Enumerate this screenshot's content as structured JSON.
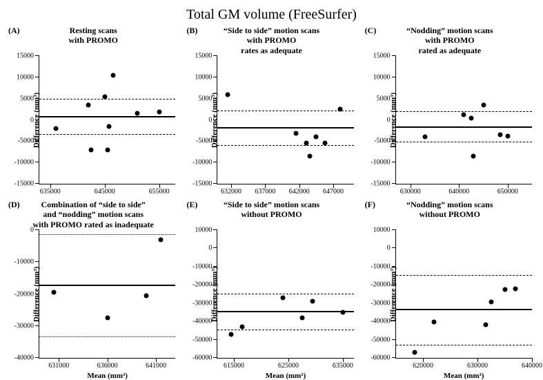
{
  "title": "Total GM volume (FreeSurfer)",
  "ylabel": "Difference (mm³)",
  "xlabel": "Mean (mm³)",
  "colors": {
    "bg": "#ffffff",
    "fg": "#000000"
  },
  "typography": {
    "title_fontsize": 20,
    "panel_title_fontsize": 12,
    "tick_fontsize": 10,
    "label_fontsize": 11
  },
  "panels": [
    {
      "label": "(A)",
      "title_lines": [
        "Resting scans",
        "with PROMO"
      ],
      "type": "scatter",
      "xlim": [
        633000,
        658000
      ],
      "ylim": [
        -15000,
        15000
      ],
      "xticks": [
        635000,
        645000,
        655000
      ],
      "yticks": [
        -15000,
        -10000,
        -5000,
        0,
        5000,
        10000,
        15000
      ],
      "mean_line": 600,
      "limits": [
        -3500,
        4800
      ],
      "limits_style": "dashed",
      "points": [
        [
          636000,
          -2000
        ],
        [
          642000,
          3500
        ],
        [
          642500,
          -7000
        ],
        [
          645000,
          5500
        ],
        [
          645500,
          -7000
        ],
        [
          645800,
          -1500
        ],
        [
          646500,
          10500
        ],
        [
          651000,
          1500
        ],
        [
          655000,
          1800
        ]
      ]
    },
    {
      "label": "(B)",
      "title_lines": [
        "“Side to side” motion scans",
        "with PROMO",
        "rates as adequate"
      ],
      "type": "scatter",
      "xlim": [
        630000,
        650000
      ],
      "ylim": [
        -15000,
        15000
      ],
      "xticks": [
        632000,
        637000,
        642000,
        647000
      ],
      "yticks": [
        -15000,
        -10000,
        -5000,
        0,
        5000,
        10000,
        15000
      ],
      "mean_line": -2000,
      "limits": [
        -6000,
        2000
      ],
      "limits_style": "dashed",
      "points": [
        [
          631500,
          6000
        ],
        [
          641500,
          -3200
        ],
        [
          643000,
          -5500
        ],
        [
          643500,
          -8500
        ],
        [
          644500,
          -4000
        ],
        [
          645800,
          -5500
        ],
        [
          648000,
          2500
        ]
      ]
    },
    {
      "label": "(C)",
      "title_lines": [
        "“Nodding” motion scans",
        "with PROMO",
        "rated as adequate"
      ],
      "type": "scatter",
      "xlim": [
        627000,
        655000
      ],
      "ylim": [
        -15000,
        15000
      ],
      "xticks": [
        630000,
        640000,
        650000
      ],
      "yticks": [
        -15000,
        -10000,
        -5000,
        0,
        5000,
        10000,
        15000
      ],
      "mean_line": -1800,
      "limits": [
        -5200,
        1800
      ],
      "limits_style": "dashed",
      "points": [
        [
          633000,
          -4000
        ],
        [
          641000,
          1200
        ],
        [
          642500,
          400
        ],
        [
          643000,
          -8500
        ],
        [
          645000,
          3500
        ],
        [
          648500,
          -3500
        ],
        [
          650000,
          -3800
        ]
      ]
    },
    {
      "label": "(D)",
      "title_lines": [
        "Combination of “side to side”",
        "and “nodding” motion scans",
        "with PROMO rated as inadequate"
      ],
      "type": "scatter",
      "xlim": [
        629000,
        643000
      ],
      "ylim": [
        -40000,
        0
      ],
      "xticks": [
        631000,
        636000,
        641000
      ],
      "yticks": [
        -40000,
        -30000,
        -20000,
        -10000,
        0
      ],
      "mean_line": -17500,
      "limits": [
        -33500,
        -1500
      ],
      "limits_style": "dotted",
      "points": [
        [
          630500,
          -19500
        ],
        [
          636000,
          -27500
        ],
        [
          640000,
          -20500
        ],
        [
          641500,
          -3000
        ]
      ],
      "show_xlabel": true
    },
    {
      "label": "(E)",
      "title_lines": [
        "“Side to side” motion scans",
        "without PROMO"
      ],
      "type": "scatter",
      "xlim": [
        612000,
        637000
      ],
      "ylim": [
        -60000,
        10000
      ],
      "xticks": [
        615000,
        625000,
        635000
      ],
      "yticks": [
        -60000,
        -50000,
        -40000,
        -30000,
        -20000,
        -10000,
        0,
        10000
      ],
      "mean_line": -35000,
      "limits": [
        -45000,
        -25000
      ],
      "limits_style": "dashed",
      "points": [
        [
          614500,
          -47000
        ],
        [
          616500,
          -43000
        ],
        [
          624000,
          -27000
        ],
        [
          627500,
          -38000
        ],
        [
          629500,
          -29000
        ],
        [
          635000,
          -35000
        ]
      ],
      "show_xlabel": true
    },
    {
      "label": "(F)",
      "title_lines": [
        "“Nodding” motion scans",
        "without PROMO"
      ],
      "type": "scatter",
      "xlim": [
        615000,
        640000
      ],
      "ylim": [
        -60000,
        10000
      ],
      "xticks": [
        620000,
        630000,
        640000
      ],
      "yticks": [
        -60000,
        -50000,
        -40000,
        -30000,
        -20000,
        -10000,
        0,
        10000
      ],
      "mean_line": -34000,
      "limits": [
        -53000,
        -15000
      ],
      "limits_style": "dashed",
      "points": [
        [
          618500,
          -57000
        ],
        [
          622000,
          -40500
        ],
        [
          631500,
          -42000
        ],
        [
          632500,
          -29500
        ],
        [
          635000,
          -22500
        ],
        [
          637000,
          -22000
        ]
      ],
      "show_xlabel": true
    }
  ]
}
